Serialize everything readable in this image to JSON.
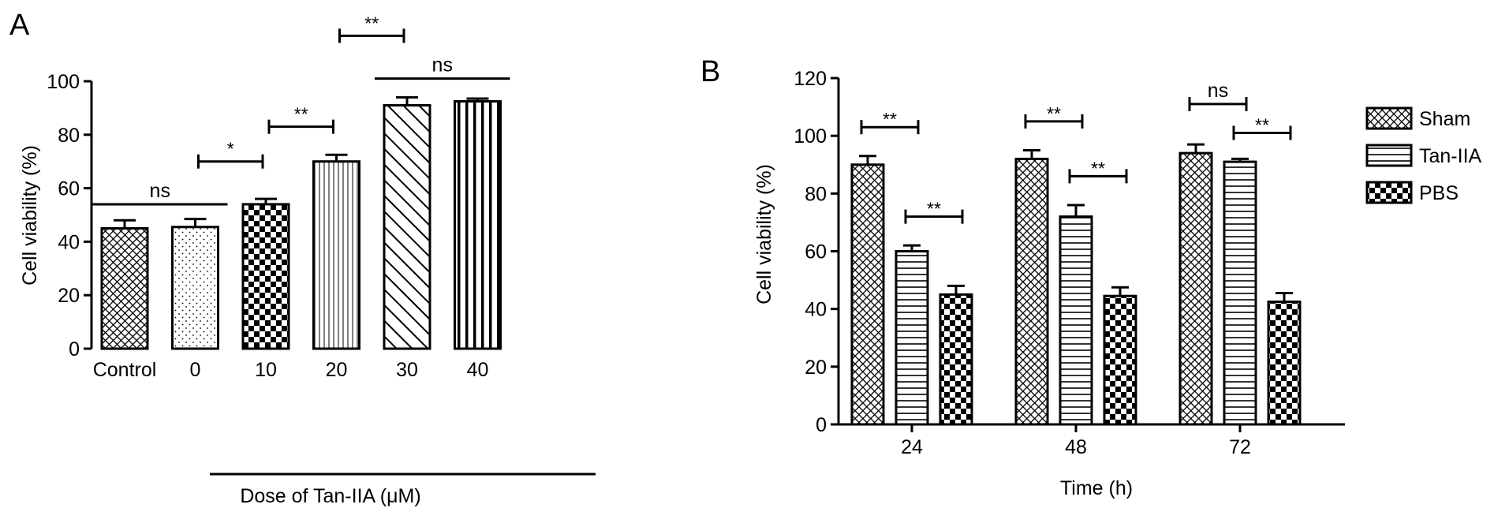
{
  "chart_data": [
    {
      "panel_label": "A",
      "type": "bar",
      "ylabel": "Cell viability (%)",
      "ylim": [
        0,
        100
      ],
      "yticks": [
        0,
        20,
        40,
        60,
        80,
        100
      ],
      "categories": [
        "Control",
        "0",
        "10",
        "20",
        "30",
        "40"
      ],
      "xlabel": "Dose of Tan-IIA (μM)",
      "values": [
        45,
        45.5,
        54,
        70,
        91,
        92.5
      ],
      "errors": [
        3,
        3,
        2,
        2.5,
        3,
        1
      ],
      "patterns": [
        "crosshatch",
        "dots",
        "checker",
        "vlines-fine",
        "diag",
        "vlines-bold"
      ],
      "brackets": [
        {
          "from": 0,
          "to": 1,
          "y": 54,
          "label": "ns",
          "type": "line"
        },
        {
          "from": 1,
          "to": 2,
          "y": 70,
          "label": "*",
          "type": "capped"
        },
        {
          "from": 2,
          "to": 3,
          "y": 83,
          "label": "**",
          "type": "capped"
        },
        {
          "from": 3,
          "to": 4,
          "y": 117,
          "label": "**",
          "type": "capped"
        },
        {
          "from": 4,
          "to": 5,
          "y": 101,
          "label": "ns",
          "type": "line"
        }
      ]
    },
    {
      "panel_label": "B",
      "type": "bar",
      "ylabel": "Cell viability (%)",
      "xlabel": "Time (h)",
      "ylim": [
        0,
        120
      ],
      "yticks": [
        0,
        20,
        40,
        60,
        80,
        100,
        120
      ],
      "categories": [
        "24",
        "48",
        "72"
      ],
      "series": [
        {
          "name": "Sham",
          "values": [
            90,
            92,
            94
          ],
          "errors": [
            3,
            3,
            3
          ],
          "pattern": "crosshatch"
        },
        {
          "name": "Tan-IIA",
          "values": [
            60,
            72,
            91
          ],
          "errors": [
            2,
            4,
            1
          ],
          "pattern": "hlines"
        },
        {
          "name": "PBS",
          "values": [
            45,
            44.5,
            42.5
          ],
          "errors": [
            3,
            3,
            3
          ],
          "pattern": "checker"
        }
      ],
      "legend_position": "right",
      "brackets": [
        {
          "group": 0,
          "from": 0,
          "to": 1,
          "y": 103,
          "label": "**"
        },
        {
          "group": 0,
          "from": 1,
          "to": 2,
          "y": 72,
          "label": "**"
        },
        {
          "group": 1,
          "from": 0,
          "to": 1,
          "y": 105,
          "label": "**"
        },
        {
          "group": 1,
          "from": 1,
          "to": 2,
          "y": 86,
          "label": "**"
        },
        {
          "group": 2,
          "from": 0,
          "to": 1,
          "y": 111,
          "label": "ns"
        },
        {
          "group": 2,
          "from": 1,
          "to": 2,
          "y": 101,
          "label": "**"
        }
      ]
    }
  ]
}
